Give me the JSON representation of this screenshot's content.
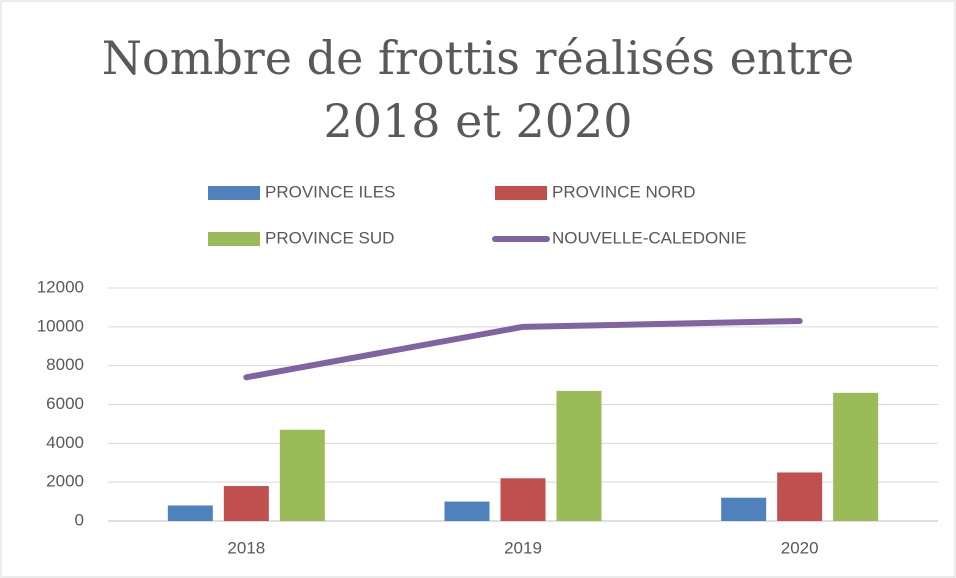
{
  "chart_data": {
    "type": "bar",
    "title": [
      "Nombre de frottis réalisés entre",
      "2018 et 2020"
    ],
    "categories": [
      "2018",
      "2019",
      "2020"
    ],
    "series": [
      {
        "name": "PROVINCE ILES",
        "color": "#4f81bd",
        "values": [
          800,
          1000,
          1200
        ]
      },
      {
        "name": "PROVINCE NORD",
        "color": "#c0504d",
        "values": [
          1800,
          2200,
          2500
        ]
      },
      {
        "name": "PROVINCE SUD",
        "color": "#9bbb59",
        "values": [
          4700,
          6700,
          6600
        ]
      },
      {
        "name": "NOUVELLE-CALEDONIE",
        "color": "#8064a2",
        "type": "line",
        "values": [
          7400,
          10000,
          10300
        ]
      }
    ],
    "ylim": [
      0,
      12000
    ],
    "yticks": [
      0,
      2000,
      4000,
      6000,
      8000,
      10000,
      12000
    ],
    "grid": true
  }
}
